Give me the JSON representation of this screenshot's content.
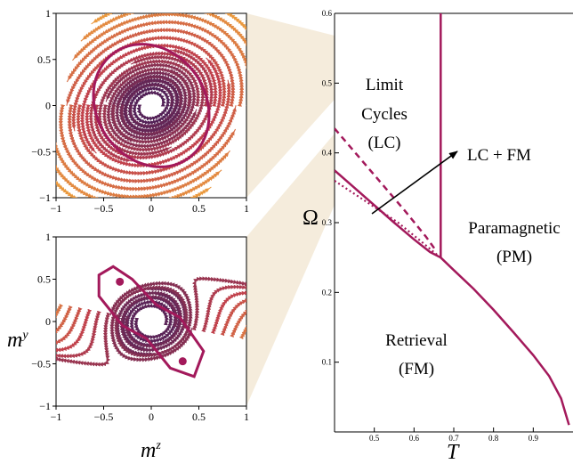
{
  "colors": {
    "phase_line": "#a3195b",
    "stream_warm": "#f2a93b",
    "stream_mid": "#c0404c",
    "stream_dark": "#3a1a5a",
    "wedge": "#f5ecdc"
  },
  "chart_data": [
    {
      "type": "streamplot",
      "panel": "top-left",
      "xlim": [
        -1,
        1
      ],
      "ylim": [
        -1,
        1
      ],
      "x_ticks": [
        "−1",
        "−0.5",
        "0",
        "0.5",
        "1"
      ],
      "y_ticks": [
        "−1",
        "−0.5",
        "0",
        "0.5",
        "1"
      ],
      "limit_cycle": {
        "type": "ellipse",
        "center": [
          0,
          0
        ],
        "semi_axes": [
          0.57,
          0.7
        ],
        "tilt_deg": -35
      },
      "fixed_points": []
    },
    {
      "type": "streamplot",
      "panel": "bottom-left",
      "xlim": [
        -1,
        1
      ],
      "ylim": [
        -1,
        1
      ],
      "x_ticks": [
        "−1",
        "−0.5",
        "0",
        "0.5",
        "1"
      ],
      "y_ticks": [
        "−1",
        "−0.5",
        "0",
        "0.5",
        "1"
      ],
      "xlabel": "m^z",
      "ylabel": "m^y",
      "fixed_points": [
        [
          -0.33,
          0.47
        ],
        [
          0.33,
          -0.47
        ]
      ]
    },
    {
      "type": "line",
      "panel": "phase-diagram",
      "xlabel": "T",
      "ylabel": "Ω",
      "xlim": [
        0.4,
        1.0
      ],
      "ylim": [
        0,
        0.6
      ],
      "x_ticks": [
        "0.5",
        "0.6",
        "0.7",
        "0.8",
        "0.9"
      ],
      "y_ticks": [
        "0.1",
        "0.2",
        "0.3",
        "0.4",
        "0.5",
        "0.6"
      ],
      "series": [
        {
          "style": "solid",
          "x": [
            0.4,
            0.45,
            0.5,
            0.55,
            0.6,
            0.64,
            0.667
          ],
          "y": [
            0.375,
            0.35,
            0.325,
            0.3,
            0.276,
            0.258,
            0.25
          ]
        },
        {
          "style": "solid",
          "x": [
            0.667,
            0.7,
            0.75,
            0.8,
            0.85,
            0.9,
            0.94,
            0.97,
            0.99
          ],
          "y": [
            0.25,
            0.232,
            0.205,
            0.175,
            0.143,
            0.11,
            0.08,
            0.048,
            0.01
          ]
        },
        {
          "style": "solid",
          "x": [
            0.667,
            0.667
          ],
          "y": [
            0.25,
            0.6
          ]
        },
        {
          "style": "dashed",
          "x": [
            0.4,
            0.46,
            0.52,
            0.58,
            0.63,
            0.655
          ],
          "y": [
            0.435,
            0.395,
            0.355,
            0.315,
            0.28,
            0.26
          ]
        },
        {
          "style": "dotted",
          "x": [
            0.4,
            0.48,
            0.56,
            0.62,
            0.66
          ],
          "y": [
            0.36,
            0.33,
            0.3,
            0.272,
            0.253
          ]
        }
      ],
      "annotations": {
        "limit_cycles": [
          "Limit",
          "Cycles",
          "(LC)"
        ],
        "lc_fm": "LC + FM",
        "paramagnetic": [
          "Paramagnetic",
          "(PM)"
        ],
        "retrieval": [
          "Retrieval",
          "(FM)"
        ]
      }
    }
  ]
}
